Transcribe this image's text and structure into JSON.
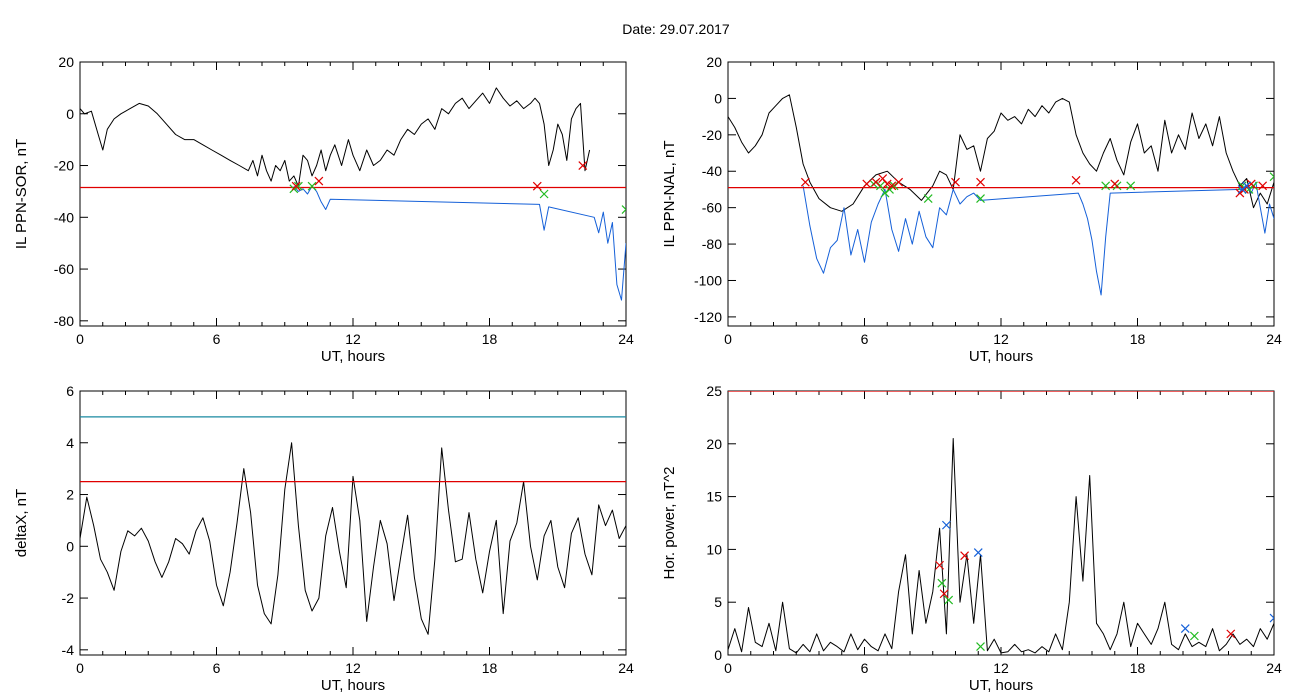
{
  "page": {
    "title": "Date:  29.07.2017"
  },
  "colors": {
    "black": "#000000",
    "red": "#e00000",
    "blue": "#1560d8",
    "green": "#22bb22",
    "teal": "#1a8aa0"
  },
  "chart_data": [
    {
      "id": "sor",
      "type": "line",
      "xlabel": "UT, hours",
      "ylabel": "IL PPN-SOR, nT",
      "xlim": [
        0,
        24
      ],
      "ylim": [
        -82,
        20
      ],
      "xticks": [
        "0",
        "6",
        "12",
        "18",
        "24"
      ],
      "yticks": [
        "20",
        "0",
        "-20",
        "-40",
        "-60",
        "-80"
      ],
      "grid": false,
      "series": [
        {
          "color": "black",
          "x": [
            0,
            0.2,
            0.5,
            0.8,
            1.0,
            1.2,
            1.5,
            1.8,
            2.2,
            2.6,
            3.0,
            3.4,
            3.8,
            4.2,
            4.6,
            5.0,
            5.4,
            5.8,
            6.2,
            6.6,
            7.0,
            7.4,
            7.6,
            7.8,
            8.0,
            8.2,
            8.4,
            8.6,
            8.8,
            9.0,
            9.2,
            9.4,
            9.6,
            9.8,
            10.0,
            10.2,
            10.4,
            10.6,
            10.8,
            11.0,
            11.2,
            11.5,
            11.8,
            12.0,
            12.3,
            12.6,
            12.9,
            13.2,
            13.5,
            13.8,
            14.1,
            14.4,
            14.7,
            15.0,
            15.3,
            15.6,
            15.9,
            16.2,
            16.5,
            16.8,
            17.1,
            17.4,
            17.7,
            18.0,
            18.3,
            18.6,
            18.9,
            19.2,
            19.5,
            19.8,
            20.0,
            20.2,
            20.4,
            20.6,
            20.8,
            21.0,
            21.2,
            21.4,
            21.6,
            21.8,
            22.0,
            22.2,
            22.4
          ],
          "y": [
            2,
            0,
            1,
            -8,
            -14,
            -6,
            -2,
            0,
            2,
            4,
            3,
            0,
            -4,
            -8,
            -10,
            -10,
            -12,
            -14,
            -16,
            -18,
            -20,
            -22,
            -18,
            -24,
            -16,
            -22,
            -26,
            -20,
            -22,
            -18,
            -26,
            -24,
            -28,
            -16,
            -18,
            -24,
            -20,
            -14,
            -22,
            -16,
            -12,
            -20,
            -10,
            -16,
            -22,
            -14,
            -20,
            -18,
            -14,
            -16,
            -10,
            -6,
            -8,
            -4,
            -2,
            -6,
            2,
            0,
            4,
            6,
            2,
            5,
            8,
            4,
            10,
            6,
            3,
            5,
            2,
            4,
            6,
            4,
            -4,
            -20,
            -14,
            -4,
            -8,
            -18,
            -2,
            2,
            4,
            -22,
            -14
          ]
        },
        {
          "color": "blue",
          "x": [
            9.4,
            9.6,
            9.8,
            10.0,
            10.2,
            10.4,
            10.6,
            10.8,
            11.0,
            20.2,
            20.4,
            20.6,
            22.6,
            22.8,
            23.0,
            23.2,
            23.4,
            23.6,
            23.8,
            24.0
          ],
          "y": [
            -28,
            -30,
            -29,
            -31,
            -28,
            -30,
            -34,
            -37,
            -33,
            -35,
            -45,
            -36,
            -40,
            -46,
            -38,
            -50,
            -42,
            -66,
            -72,
            -50
          ]
        },
        {
          "color": "red",
          "x": [
            0,
            24
          ],
          "y": [
            -28.5,
            -28.5
          ]
        }
      ],
      "markers": [
        {
          "color": "green",
          "x": [
            9.4,
            9.6,
            10.2,
            20.4,
            24.0
          ],
          "y": [
            -29,
            -28,
            -28,
            -31,
            -37
          ]
        },
        {
          "color": "red",
          "x": [
            9.5,
            10.5,
            20.1,
            22.1
          ],
          "y": [
            -28,
            -26,
            -28,
            -20
          ]
        }
      ]
    },
    {
      "id": "nal",
      "type": "line",
      "xlabel": "UT, hours",
      "ylabel": "IL PPN-NAL, nT",
      "xlim": [
        0,
        24
      ],
      "ylim": [
        -125,
        20
      ],
      "xticks": [
        "0",
        "6",
        "12",
        "18",
        "24"
      ],
      "yticks": [
        "20",
        "0",
        "-20",
        "-40",
        "-60",
        "-80",
        "-100",
        "-120"
      ],
      "grid": false,
      "series": [
        {
          "color": "black",
          "x": [
            0,
            0.3,
            0.6,
            0.9,
            1.2,
            1.5,
            1.8,
            2.1,
            2.4,
            2.7,
            3.0,
            3.3,
            3.6,
            4.0,
            4.5,
            5.0,
            5.5,
            6.0,
            6.5,
            7.0,
            7.5,
            8.0,
            8.5,
            9.0,
            9.3,
            9.6,
            9.9,
            10.2,
            10.5,
            10.8,
            11.1,
            11.4,
            11.7,
            12.0,
            12.3,
            12.6,
            12.9,
            13.2,
            13.5,
            13.8,
            14.1,
            14.4,
            14.7,
            15.0,
            15.3,
            15.6,
            15.9,
            16.2,
            16.5,
            16.8,
            17.1,
            17.4,
            17.7,
            18.0,
            18.3,
            18.6,
            18.9,
            19.2,
            19.5,
            19.8,
            20.1,
            20.4,
            20.7,
            21.0,
            21.3,
            21.6,
            21.9,
            22.2,
            22.5,
            22.8,
            23.1,
            23.4,
            23.7,
            24.0
          ],
          "y": [
            -10,
            -16,
            -24,
            -30,
            -26,
            -20,
            -8,
            -4,
            0,
            2,
            -16,
            -36,
            -46,
            -55,
            -60,
            -62,
            -58,
            -48,
            -42,
            -40,
            -46,
            -50,
            -56,
            -48,
            -40,
            -42,
            -50,
            -20,
            -28,
            -26,
            -40,
            -22,
            -18,
            -8,
            -12,
            -10,
            -14,
            -6,
            -10,
            -4,
            -8,
            -2,
            0,
            -2,
            -20,
            -30,
            -36,
            -40,
            -30,
            -22,
            -34,
            -42,
            -24,
            -14,
            -30,
            -26,
            -40,
            -12,
            -30,
            -20,
            -28,
            -8,
            -22,
            -14,
            -26,
            -10,
            -30,
            -40,
            -48,
            -44,
            -60,
            -52,
            -58,
            -46
          ],
          "gaps": [
            [
              20.0,
              20.2
            ]
          ]
        },
        {
          "color": "blue",
          "x": [
            3.3,
            3.6,
            3.9,
            4.2,
            4.5,
            4.8,
            5.1,
            5.4,
            5.7,
            6.0,
            6.3,
            6.6,
            6.9,
            7.2,
            7.5,
            7.8,
            8.1,
            8.4,
            8.7,
            9.0,
            9.3,
            9.6,
            9.9,
            10.2,
            10.5,
            10.8,
            11.1,
            15.4,
            15.6,
            15.8,
            16.0,
            16.2,
            16.4,
            16.6,
            16.8,
            22.6,
            22.8,
            23.0,
            23.2,
            23.4,
            23.6,
            23.8,
            24.0
          ],
          "y": [
            -48,
            -70,
            -88,
            -96,
            -82,
            -78,
            -60,
            -86,
            -72,
            -90,
            -68,
            -58,
            -50,
            -72,
            -84,
            -66,
            -80,
            -62,
            -76,
            -82,
            -60,
            -64,
            -50,
            -58,
            -54,
            -52,
            -56,
            -52,
            -58,
            -66,
            -78,
            -95,
            -108,
            -76,
            -52,
            -50,
            -48,
            -52,
            -46,
            -60,
            -74,
            -58,
            -66
          ]
        },
        {
          "color": "red",
          "x": [
            0,
            24
          ],
          "y": [
            -49,
            -49
          ]
        }
      ],
      "markers": [
        {
          "color": "green",
          "x": [
            6.4,
            6.7,
            6.9,
            7.1,
            7.3,
            8.8,
            11.1,
            16.6,
            17.1,
            17.7,
            22.6,
            22.9,
            23.1,
            24.0
          ],
          "y": [
            -47,
            -48,
            -52,
            -50,
            -48,
            -55,
            -55,
            -48,
            -48,
            -48,
            -48,
            -50,
            -48,
            -43
          ]
        },
        {
          "color": "red",
          "x": [
            3.4,
            6.1,
            6.5,
            6.8,
            7.0,
            7.2,
            7.5,
            10.0,
            11.1,
            15.3,
            17.0,
            22.5,
            22.7,
            23.0,
            23.5
          ],
          "y": [
            -46,
            -47,
            -46,
            -44,
            -47,
            -48,
            -46,
            -46,
            -46,
            -45,
            -47,
            -52,
            -50,
            -47,
            -48
          ]
        },
        {
          "color": "blue",
          "x": [
            22.6,
            22.8
          ],
          "y": [
            -50,
            -48
          ]
        }
      ]
    },
    {
      "id": "deltax",
      "type": "line",
      "xlabel": "UT, hours",
      "ylabel": "deltaX, nT",
      "xlim": [
        0,
        24
      ],
      "ylim": [
        -4.2,
        6
      ],
      "xticks": [
        "0",
        "6",
        "12",
        "18",
        "24"
      ],
      "yticks": [
        "6",
        "4",
        "2",
        "0",
        "-2",
        "-4"
      ],
      "grid": false,
      "series": [
        {
          "color": "black",
          "x": [
            0,
            0.3,
            0.6,
            0.9,
            1.2,
            1.5,
            1.8,
            2.1,
            2.4,
            2.7,
            3.0,
            3.3,
            3.6,
            3.9,
            4.2,
            4.5,
            4.8,
            5.1,
            5.4,
            5.7,
            6.0,
            6.3,
            6.6,
            6.9,
            7.2,
            7.5,
            7.8,
            8.1,
            8.4,
            8.7,
            9.0,
            9.3,
            9.6,
            9.9,
            10.2,
            10.5,
            10.8,
            11.1,
            11.4,
            11.7,
            12.0,
            12.3,
            12.6,
            12.9,
            13.2,
            13.5,
            13.8,
            14.1,
            14.4,
            14.7,
            15.0,
            15.3,
            15.6,
            15.9,
            16.2,
            16.5,
            16.8,
            17.1,
            17.4,
            17.7,
            18.0,
            18.3,
            18.6,
            18.9,
            19.2,
            19.5,
            19.8,
            20.1,
            20.4,
            20.7,
            21.0,
            21.3,
            21.6,
            21.9,
            22.2,
            22.5,
            22.8,
            23.1,
            23.4,
            23.7,
            24.0
          ],
          "y": [
            0.3,
            1.9,
            0.8,
            -0.5,
            -1.0,
            -1.7,
            -0.2,
            0.6,
            0.4,
            0.7,
            0.2,
            -0.6,
            -1.2,
            -0.6,
            0.3,
            0.1,
            -0.3,
            0.6,
            1.1,
            0.2,
            -1.5,
            -2.3,
            -1.0,
            0.9,
            3.0,
            1.3,
            -1.5,
            -2.6,
            -3.0,
            -1.1,
            2.2,
            4.0,
            0.8,
            -1.7,
            -2.5,
            -2.0,
            0.4,
            1.5,
            -0.2,
            -1.6,
            2.7,
            1.0,
            -2.9,
            -0.8,
            1.0,
            0.1,
            -2.1,
            -0.4,
            1.2,
            -1.2,
            -2.8,
            -3.4,
            -0.5,
            3.8,
            1.4,
            -0.6,
            -0.5,
            1.3,
            -0.5,
            -1.8,
            -0.2,
            1.0,
            -2.6,
            0.2,
            0.9,
            2.5,
            0.0,
            -1.3,
            0.4,
            1.0,
            -0.8,
            -1.6,
            0.5,
            1.1,
            -0.3,
            -1.1,
            1.6,
            0.8,
            1.4,
            0.3,
            0.8
          ]
        },
        {
          "color": "red",
          "x": [
            0,
            24
          ],
          "y": [
            2.5,
            2.5
          ]
        },
        {
          "color": "teal",
          "x": [
            0,
            24
          ],
          "y": [
            5.0,
            5.0
          ]
        }
      ],
      "markers": []
    },
    {
      "id": "power",
      "type": "line",
      "xlabel": "UT, hours",
      "ylabel": "Hor. power, nT^2",
      "xlim": [
        0,
        24
      ],
      "ylim": [
        0,
        25
      ],
      "xticks": [
        "0",
        "6",
        "12",
        "18",
        "24"
      ],
      "yticks": [
        "25",
        "20",
        "15",
        "10",
        "5",
        "0"
      ],
      "grid": false,
      "series": [
        {
          "color": "black",
          "x": [
            0,
            0.3,
            0.6,
            0.9,
            1.2,
            1.5,
            1.8,
            2.1,
            2.4,
            2.7,
            3.0,
            3.3,
            3.6,
            3.9,
            4.2,
            4.5,
            4.8,
            5.1,
            5.4,
            5.7,
            6.0,
            6.3,
            6.6,
            6.9,
            7.2,
            7.5,
            7.8,
            8.1,
            8.4,
            8.7,
            9.0,
            9.3,
            9.6,
            9.9,
            10.2,
            10.5,
            10.8,
            11.1,
            11.4,
            11.7,
            12.0,
            12.3,
            12.6,
            12.9,
            13.2,
            13.5,
            13.8,
            14.1,
            14.4,
            14.7,
            15.0,
            15.3,
            15.6,
            15.9,
            16.2,
            16.5,
            16.8,
            17.1,
            17.4,
            17.7,
            18.0,
            18.3,
            18.6,
            18.9,
            19.2,
            19.5,
            19.8,
            20.1,
            20.4,
            20.7,
            21.0,
            21.3,
            21.6,
            21.9,
            22.2,
            22.5,
            22.8,
            23.1,
            23.4,
            23.7,
            24.0
          ],
          "y": [
            0.5,
            2.5,
            0.3,
            4.5,
            1.2,
            0.8,
            3.0,
            0.4,
            5.0,
            0.6,
            0.2,
            1.0,
            0.3,
            2.0,
            0.4,
            1.2,
            0.8,
            0.3,
            2.0,
            0.5,
            1.5,
            0.8,
            0.4,
            2.0,
            0.6,
            6.0,
            9.5,
            2.0,
            8.0,
            3.0,
            6.0,
            12.0,
            2.0,
            20.5,
            5.0,
            9.5,
            3.0,
            9.5,
            0.4,
            1.5,
            0.2,
            0.3,
            1.0,
            0.3,
            0.5,
            0.2,
            0.8,
            0.3,
            2.0,
            0.5,
            5.0,
            15.0,
            7.0,
            17.0,
            3.0,
            2.0,
            0.5,
            2.0,
            5.0,
            0.8,
            3.0,
            2.0,
            1.0,
            2.5,
            5.0,
            1.0,
            0.5,
            2.0,
            0.8,
            1.2,
            0.8,
            2.5,
            0.4,
            1.0,
            2.0,
            1.0,
            1.5,
            0.8,
            2.5,
            1.5,
            3.0
          ]
        },
        {
          "color": "red",
          "x": [
            0,
            24
          ],
          "y": [
            25,
            25
          ]
        }
      ],
      "markers": [
        {
          "color": "blue",
          "x": [
            9.6,
            11.0,
            20.1,
            24.0
          ],
          "y": [
            12.3,
            9.7,
            2.5,
            3.5
          ]
        },
        {
          "color": "red",
          "x": [
            9.3,
            9.5,
            10.4,
            22.1
          ],
          "y": [
            8.5,
            5.8,
            9.4,
            2.0
          ]
        },
        {
          "color": "green",
          "x": [
            9.4,
            9.7,
            11.1,
            20.5
          ],
          "y": [
            6.8,
            5.2,
            0.8,
            1.8
          ]
        }
      ]
    }
  ]
}
